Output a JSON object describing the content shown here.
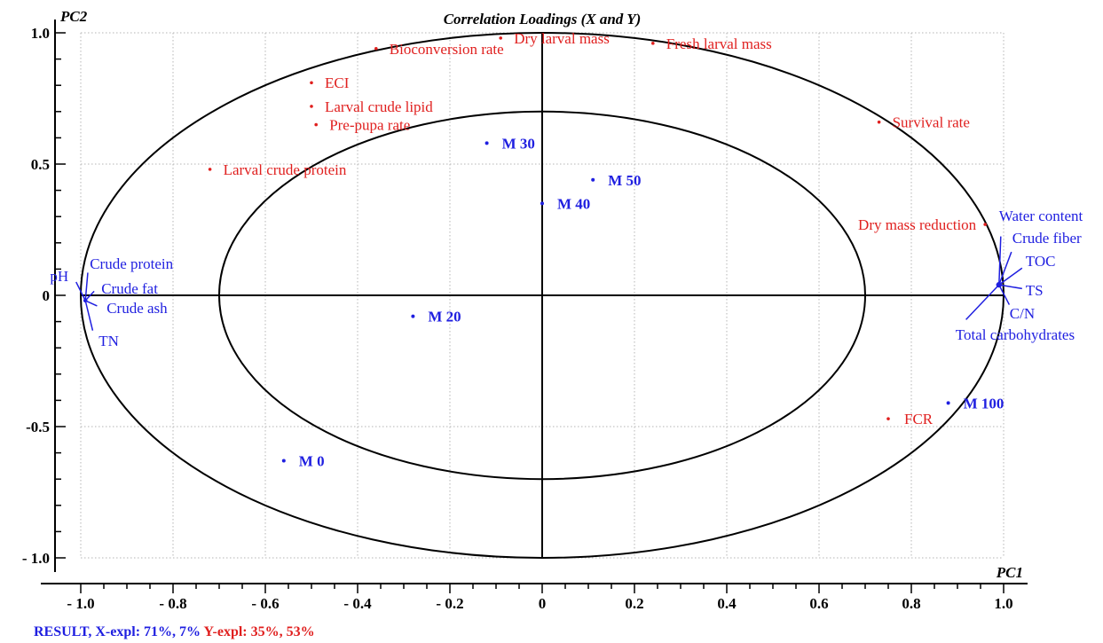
{
  "chart_data": {
    "type": "scatter",
    "title": "Correlation Loadings (X and Y)",
    "xlabel": "PC1",
    "ylabel": "PC2",
    "xlim": [
      -1.0,
      1.0
    ],
    "ylim": [
      -1.0,
      1.0
    ],
    "x_ticks": [
      {
        "value": -1.0,
        "label": "- 1.0"
      },
      {
        "value": -0.8,
        "label": "- 0.8"
      },
      {
        "value": -0.6,
        "label": "- 0.6"
      },
      {
        "value": -0.4,
        "label": "- 0.4"
      },
      {
        "value": -0.2,
        "label": "- 0.2"
      },
      {
        "value": 0.0,
        "label": "0"
      },
      {
        "value": 0.2,
        "label": "0.2"
      },
      {
        "value": 0.4,
        "label": "0.4"
      },
      {
        "value": 0.6,
        "label": "0.6"
      },
      {
        "value": 0.8,
        "label": "0.8"
      },
      {
        "value": 1.0,
        "label": "1.0"
      }
    ],
    "y_ticks": [
      {
        "value": 1.0,
        "label": "1.0"
      },
      {
        "value": 0.5,
        "label": "0.5"
      },
      {
        "value": 0.0,
        "label": "0"
      },
      {
        "value": -0.5,
        "label": "-0.5"
      },
      {
        "value": -1.0,
        "label": "- 1.0"
      }
    ],
    "grid": true,
    "circles": [
      {
        "name": "outer",
        "radius": 1.0
      },
      {
        "name": "inner",
        "radius": 0.7
      }
    ],
    "colors": {
      "x_variables": "#1f1fe0",
      "y_variables": "#e0201f",
      "samples": "#1f1fe0"
    },
    "samples": [
      {
        "label": "M 0",
        "x": -0.56,
        "y": -0.63
      },
      {
        "label": "M 20",
        "x": -0.28,
        "y": -0.08
      },
      {
        "label": "M 30",
        "x": -0.12,
        "y": 0.58
      },
      {
        "label": "M 40",
        "x": 0.0,
        "y": 0.35
      },
      {
        "label": "M 50",
        "x": 0.11,
        "y": 0.44
      },
      {
        "label": "M 100",
        "x": 0.88,
        "y": -0.41
      }
    ],
    "y_variables": [
      {
        "label": "Bioconversion rate",
        "x": -0.36,
        "y": 0.94
      },
      {
        "label": "Dry larval mass",
        "x": -0.09,
        "y": 0.98
      },
      {
        "label": "Fresh larval mass",
        "x": 0.24,
        "y": 0.96
      },
      {
        "label": "ECI",
        "x": -0.5,
        "y": 0.81
      },
      {
        "label": "Larval crude lipid",
        "x": -0.5,
        "y": 0.72
      },
      {
        "label": "Pre-pupa rate",
        "x": -0.49,
        "y": 0.65
      },
      {
        "label": "Survival rate",
        "x": 0.73,
        "y": 0.66
      },
      {
        "label": "Larval crude protein",
        "x": -0.72,
        "y": 0.48
      },
      {
        "label": "Dry mass reduction",
        "x": 0.96,
        "y": 0.27
      },
      {
        "label": "FCR",
        "x": 0.75,
        "y": -0.47
      }
    ],
    "x_variables_left": [
      {
        "label": "pH",
        "x": -0.99,
        "y": -0.02
      },
      {
        "label": "Crude protein",
        "x": -0.99,
        "y": -0.02
      },
      {
        "label": "Crude fat",
        "x": -0.99,
        "y": -0.02
      },
      {
        "label": "Crude ash",
        "x": -0.99,
        "y": -0.02
      },
      {
        "label": "TN",
        "x": -0.99,
        "y": -0.02
      }
    ],
    "x_variables_right": [
      {
        "label": "Water content",
        "x": 0.99,
        "y": 0.04
      },
      {
        "label": "Crude fiber",
        "x": 0.99,
        "y": 0.04
      },
      {
        "label": "TOC",
        "x": 0.99,
        "y": 0.04
      },
      {
        "label": "TS",
        "x": 0.99,
        "y": 0.04
      },
      {
        "label": "C/N",
        "x": 0.99,
        "y": 0.04
      },
      {
        "label": "Total carbohydrates",
        "x": 0.99,
        "y": 0.04
      }
    ]
  },
  "footer": {
    "result_label": "RESULT, X-expl: 71%, 7%",
    "y_expl_label": "Y-expl: 35%, 53%"
  }
}
